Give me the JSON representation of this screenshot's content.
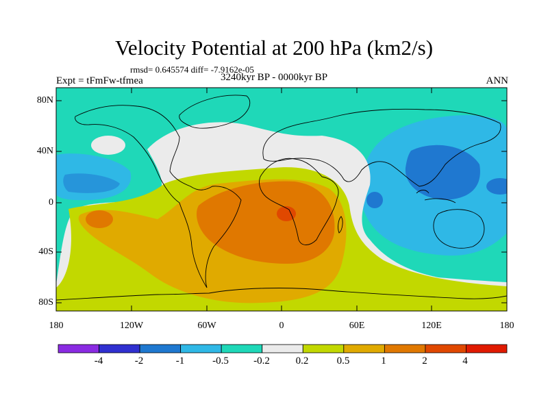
{
  "title": "Velocity Potential at 200 hPa (km2/s)",
  "stats": "rmsd= 0.645574 diff= -7.9162e-05",
  "period": "3240kyr BP - 0000kyr BP",
  "experiment": "Expt = tFmFw-tfmea",
  "season": "ANN",
  "axes": {
    "y_ticks": [
      "80N",
      "40N",
      "0",
      "40S",
      "80S"
    ],
    "x_ticks": [
      "180",
      "120W",
      "60W",
      "0",
      "60E",
      "120E",
      "180"
    ]
  },
  "colorbar": {
    "labels": [
      "-4",
      "-2",
      "-1",
      "-0.5",
      "-0.2",
      "0.2",
      "0.5",
      "1",
      "2",
      "4"
    ],
    "colors": [
      "#8a2be2",
      "#3030d0",
      "#1f78d0",
      "#2fb8e6",
      "#1fd8b8",
      "#ebebeb",
      "#c2d800",
      "#e0aa00",
      "#e07800",
      "#e04800",
      "#e01a00"
    ]
  }
}
